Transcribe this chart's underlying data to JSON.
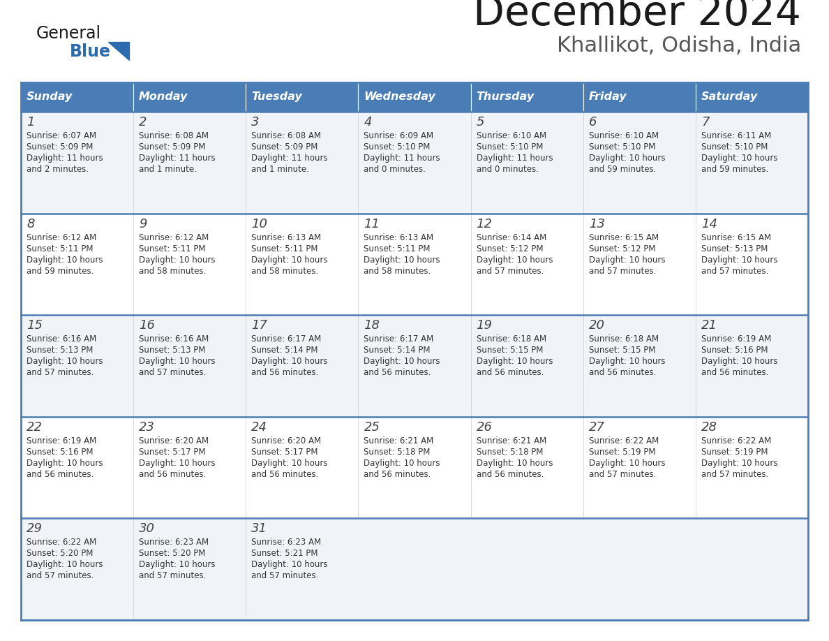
{
  "title": "December 2024",
  "subtitle": "Khallikot, Odisha, India",
  "header_color": "#4a7db5",
  "header_text_color": "#ffffff",
  "days_of_week": [
    "Sunday",
    "Monday",
    "Tuesday",
    "Wednesday",
    "Thursday",
    "Friday",
    "Saturday"
  ],
  "row_bg_colors": [
    "#f0f4f8",
    "#ffffff"
  ],
  "border_color": "#4a7db5",
  "text_color": "#333333",
  "day_num_color": "#444444",
  "calendar_data": [
    [
      {
        "day": "1",
        "sunrise": "6:07 AM",
        "sunset": "5:09 PM",
        "daylight_line1": "Daylight: 11 hours",
        "daylight_line2": "and 2 minutes."
      },
      {
        "day": "2",
        "sunrise": "6:08 AM",
        "sunset": "5:09 PM",
        "daylight_line1": "Daylight: 11 hours",
        "daylight_line2": "and 1 minute."
      },
      {
        "day": "3",
        "sunrise": "6:08 AM",
        "sunset": "5:09 PM",
        "daylight_line1": "Daylight: 11 hours",
        "daylight_line2": "and 1 minute."
      },
      {
        "day": "4",
        "sunrise": "6:09 AM",
        "sunset": "5:10 PM",
        "daylight_line1": "Daylight: 11 hours",
        "daylight_line2": "and 0 minutes."
      },
      {
        "day": "5",
        "sunrise": "6:10 AM",
        "sunset": "5:10 PM",
        "daylight_line1": "Daylight: 11 hours",
        "daylight_line2": "and 0 minutes."
      },
      {
        "day": "6",
        "sunrise": "6:10 AM",
        "sunset": "5:10 PM",
        "daylight_line1": "Daylight: 10 hours",
        "daylight_line2": "and 59 minutes."
      },
      {
        "day": "7",
        "sunrise": "6:11 AM",
        "sunset": "5:10 PM",
        "daylight_line1": "Daylight: 10 hours",
        "daylight_line2": "and 59 minutes."
      }
    ],
    [
      {
        "day": "8",
        "sunrise": "6:12 AM",
        "sunset": "5:11 PM",
        "daylight_line1": "Daylight: 10 hours",
        "daylight_line2": "and 59 minutes."
      },
      {
        "day": "9",
        "sunrise": "6:12 AM",
        "sunset": "5:11 PM",
        "daylight_line1": "Daylight: 10 hours",
        "daylight_line2": "and 58 minutes."
      },
      {
        "day": "10",
        "sunrise": "6:13 AM",
        "sunset": "5:11 PM",
        "daylight_line1": "Daylight: 10 hours",
        "daylight_line2": "and 58 minutes."
      },
      {
        "day": "11",
        "sunrise": "6:13 AM",
        "sunset": "5:11 PM",
        "daylight_line1": "Daylight: 10 hours",
        "daylight_line2": "and 58 minutes."
      },
      {
        "day": "12",
        "sunrise": "6:14 AM",
        "sunset": "5:12 PM",
        "daylight_line1": "Daylight: 10 hours",
        "daylight_line2": "and 57 minutes."
      },
      {
        "day": "13",
        "sunrise": "6:15 AM",
        "sunset": "5:12 PM",
        "daylight_line1": "Daylight: 10 hours",
        "daylight_line2": "and 57 minutes."
      },
      {
        "day": "14",
        "sunrise": "6:15 AM",
        "sunset": "5:13 PM",
        "daylight_line1": "Daylight: 10 hours",
        "daylight_line2": "and 57 minutes."
      }
    ],
    [
      {
        "day": "15",
        "sunrise": "6:16 AM",
        "sunset": "5:13 PM",
        "daylight_line1": "Daylight: 10 hours",
        "daylight_line2": "and 57 minutes."
      },
      {
        "day": "16",
        "sunrise": "6:16 AM",
        "sunset": "5:13 PM",
        "daylight_line1": "Daylight: 10 hours",
        "daylight_line2": "and 57 minutes."
      },
      {
        "day": "17",
        "sunrise": "6:17 AM",
        "sunset": "5:14 PM",
        "daylight_line1": "Daylight: 10 hours",
        "daylight_line2": "and 56 minutes."
      },
      {
        "day": "18",
        "sunrise": "6:17 AM",
        "sunset": "5:14 PM",
        "daylight_line1": "Daylight: 10 hours",
        "daylight_line2": "and 56 minutes."
      },
      {
        "day": "19",
        "sunrise": "6:18 AM",
        "sunset": "5:15 PM",
        "daylight_line1": "Daylight: 10 hours",
        "daylight_line2": "and 56 minutes."
      },
      {
        "day": "20",
        "sunrise": "6:18 AM",
        "sunset": "5:15 PM",
        "daylight_line1": "Daylight: 10 hours",
        "daylight_line2": "and 56 minutes."
      },
      {
        "day": "21",
        "sunrise": "6:19 AM",
        "sunset": "5:16 PM",
        "daylight_line1": "Daylight: 10 hours",
        "daylight_line2": "and 56 minutes."
      }
    ],
    [
      {
        "day": "22",
        "sunrise": "6:19 AM",
        "sunset": "5:16 PM",
        "daylight_line1": "Daylight: 10 hours",
        "daylight_line2": "and 56 minutes."
      },
      {
        "day": "23",
        "sunrise": "6:20 AM",
        "sunset": "5:17 PM",
        "daylight_line1": "Daylight: 10 hours",
        "daylight_line2": "and 56 minutes."
      },
      {
        "day": "24",
        "sunrise": "6:20 AM",
        "sunset": "5:17 PM",
        "daylight_line1": "Daylight: 10 hours",
        "daylight_line2": "and 56 minutes."
      },
      {
        "day": "25",
        "sunrise": "6:21 AM",
        "sunset": "5:18 PM",
        "daylight_line1": "Daylight: 10 hours",
        "daylight_line2": "and 56 minutes."
      },
      {
        "day": "26",
        "sunrise": "6:21 AM",
        "sunset": "5:18 PM",
        "daylight_line1": "Daylight: 10 hours",
        "daylight_line2": "and 56 minutes."
      },
      {
        "day": "27",
        "sunrise": "6:22 AM",
        "sunset": "5:19 PM",
        "daylight_line1": "Daylight: 10 hours",
        "daylight_line2": "and 57 minutes."
      },
      {
        "day": "28",
        "sunrise": "6:22 AM",
        "sunset": "5:19 PM",
        "daylight_line1": "Daylight: 10 hours",
        "daylight_line2": "and 57 minutes."
      }
    ],
    [
      {
        "day": "29",
        "sunrise": "6:22 AM",
        "sunset": "5:20 PM",
        "daylight_line1": "Daylight: 10 hours",
        "daylight_line2": "and 57 minutes."
      },
      {
        "day": "30",
        "sunrise": "6:23 AM",
        "sunset": "5:20 PM",
        "daylight_line1": "Daylight: 10 hours",
        "daylight_line2": "and 57 minutes."
      },
      {
        "day": "31",
        "sunrise": "6:23 AM",
        "sunset": "5:21 PM",
        "daylight_line1": "Daylight: 10 hours",
        "daylight_line2": "and 57 minutes."
      },
      null,
      null,
      null,
      null
    ]
  ],
  "logo_color_general": "#1a1a1a",
  "logo_color_blue": "#2b6cb0",
  "logo_triangle_color": "#2b6cb0",
  "title_color": "#1a1a1a",
  "subtitle_color": "#555555"
}
